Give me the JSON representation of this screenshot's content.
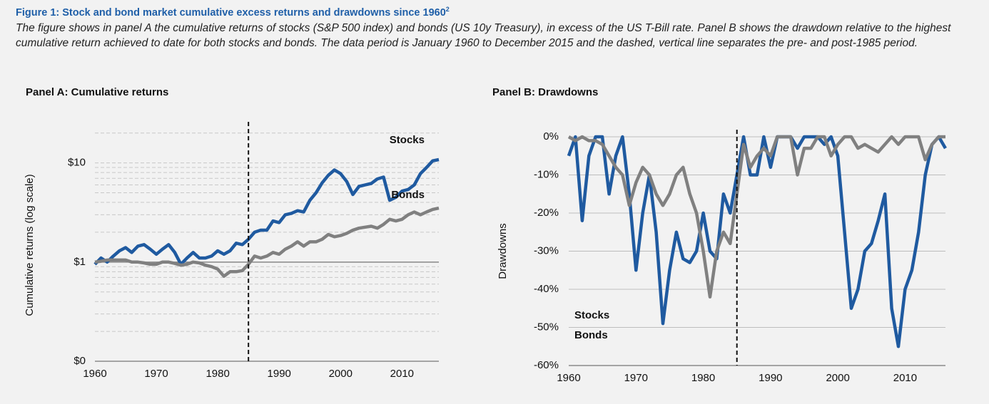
{
  "header": {
    "title": "Figure 1: Stock and bond market cumulative excess returns and drawdowns since 1960",
    "title_note": "2",
    "caption": "The figure shows in panel A the cumulative returns of stocks (S&P 500 index) and bonds (US 10y Treasury), in excess of the US T-Bill rate. Panel B shows the drawdown relative to the highest cumulative return achieved to date for both stocks and bonds. The data period is January 1960 to December 2015 and the dashed, vertical line separates the pre- and post-1985 period."
  },
  "chart_data": [
    {
      "type": "line",
      "title": "Panel A: Cumulative returns",
      "y_label": "Cumulative returns (log scale)",
      "yscale": "log",
      "legend": "inline",
      "grid": true,
      "x": [
        1960,
        1961,
        1962,
        1963,
        1964,
        1965,
        1966,
        1967,
        1968,
        1969,
        1970,
        1971,
        1972,
        1973,
        1974,
        1975,
        1976,
        1977,
        1978,
        1979,
        1980,
        1981,
        1982,
        1983,
        1984,
        1985,
        1986,
        1987,
        1988,
        1989,
        1990,
        1991,
        1992,
        1993,
        1994,
        1995,
        1996,
        1997,
        1998,
        1999,
        2000,
        2001,
        2002,
        2003,
        2004,
        2005,
        2006,
        2007,
        2008,
        2009,
        2010,
        2011,
        2012,
        2013,
        2014,
        2015,
        2016
      ],
      "series": [
        {
          "name": "Stocks",
          "color": "#1f5aa0",
          "values": [
            0.95,
            1.1,
            1.0,
            1.15,
            1.3,
            1.4,
            1.25,
            1.45,
            1.5,
            1.35,
            1.2,
            1.35,
            1.5,
            1.25,
            0.95,
            1.1,
            1.25,
            1.1,
            1.1,
            1.15,
            1.3,
            1.2,
            1.3,
            1.55,
            1.5,
            1.7,
            2.0,
            2.1,
            2.1,
            2.6,
            2.5,
            3.0,
            3.1,
            3.3,
            3.2,
            4.2,
            5.0,
            6.3,
            7.5,
            8.5,
            7.8,
            6.5,
            4.8,
            5.8,
            6.0,
            6.2,
            6.9,
            7.2,
            4.2,
            4.5,
            5.2,
            5.4,
            6.0,
            7.8,
            9.0,
            10.5,
            10.8
          ]
        },
        {
          "name": "Bonds",
          "color": "#808080",
          "values": [
            1.0,
            1.02,
            1.05,
            1.05,
            1.05,
            1.05,
            1.0,
            1.0,
            0.98,
            0.95,
            0.95,
            1.0,
            1.0,
            0.97,
            0.93,
            0.95,
            1.0,
            0.98,
            0.93,
            0.9,
            0.85,
            0.72,
            0.8,
            0.8,
            0.82,
            0.95,
            1.15,
            1.1,
            1.15,
            1.25,
            1.2,
            1.35,
            1.45,
            1.6,
            1.45,
            1.6,
            1.6,
            1.7,
            1.9,
            1.8,
            1.85,
            1.95,
            2.1,
            2.2,
            2.25,
            2.3,
            2.2,
            2.4,
            2.7,
            2.6,
            2.7,
            3.0,
            3.2,
            3.0,
            3.2,
            3.4,
            3.5
          ]
        }
      ],
      "xlim": [
        1960,
        2016
      ],
      "xticks": [
        1960,
        1970,
        1980,
        1990,
        2000,
        2010
      ],
      "ylim": [
        0.1,
        22
      ],
      "yticks": [
        {
          "value": 0.1,
          "label": "$0"
        },
        {
          "value": 1,
          "label": "$1"
        },
        {
          "value": 10,
          "label": "$10"
        }
      ],
      "yminor": [
        0.2,
        0.3,
        0.4,
        0.5,
        0.6,
        0.7,
        0.8,
        0.9,
        2,
        3,
        4,
        5,
        6,
        7,
        8,
        9,
        20
      ],
      "baseline": 1,
      "vline": 1985
    },
    {
      "type": "line",
      "title": "Panel B: Drawdowns",
      "y_label": "Drawdowns",
      "yscale": "linear",
      "legend": "lower left",
      "grid": true,
      "x": [
        1960,
        1961,
        1962,
        1963,
        1964,
        1965,
        1966,
        1967,
        1968,
        1969,
        1970,
        1971,
        1972,
        1973,
        1974,
        1975,
        1976,
        1977,
        1978,
        1979,
        1980,
        1981,
        1982,
        1983,
        1984,
        1985,
        1986,
        1987,
        1988,
        1989,
        1990,
        1991,
        1992,
        1993,
        1994,
        1995,
        1996,
        1997,
        1998,
        1999,
        2000,
        2001,
        2002,
        2003,
        2004,
        2005,
        2006,
        2007,
        2008,
        2009,
        2010,
        2011,
        2012,
        2013,
        2014,
        2015,
        2016
      ],
      "series": [
        {
          "name": "Stocks",
          "color": "#1f5aa0",
          "values": [
            -5,
            0,
            -22,
            -5,
            0,
            0,
            -15,
            -5,
            0,
            -15,
            -35,
            -20,
            -10,
            -25,
            -49,
            -35,
            -25,
            -32,
            -33,
            -30,
            -20,
            -30,
            -32,
            -15,
            -20,
            -10,
            0,
            -10,
            -10,
            0,
            -8,
            0,
            0,
            0,
            -3,
            0,
            0,
            0,
            -2,
            0,
            -5,
            -25,
            -45,
            -40,
            -30,
            -28,
            -22,
            -15,
            -45,
            -55,
            -40,
            -35,
            -25,
            -10,
            -2,
            0,
            -3
          ]
        },
        {
          "name": "Bonds",
          "color": "#808080",
          "values": [
            0,
            -1,
            0,
            -1,
            -1,
            -2,
            -5,
            -8,
            -10,
            -18,
            -12,
            -8,
            -10,
            -15,
            -18,
            -15,
            -10,
            -8,
            -15,
            -20,
            -30,
            -42,
            -30,
            -25,
            -28,
            -15,
            -2,
            -8,
            -5,
            -3,
            -5,
            0,
            0,
            0,
            -10,
            -3,
            -3,
            0,
            0,
            -5,
            -2,
            0,
            0,
            -3,
            -2,
            -3,
            -4,
            -2,
            0,
            -2,
            0,
            0,
            0,
            -6,
            -2,
            0,
            0
          ]
        }
      ],
      "xlim": [
        1960,
        2016
      ],
      "xticks": [
        1960,
        1970,
        1980,
        1990,
        2000,
        2010
      ],
      "ylim": [
        -60,
        0
      ],
      "yticks": [
        {
          "value": -60,
          "label": "-60%"
        },
        {
          "value": -50,
          "label": "-50%"
        },
        {
          "value": -40,
          "label": "-40%"
        },
        {
          "value": -30,
          "label": "-30%"
        },
        {
          "value": -20,
          "label": "-20%"
        },
        {
          "value": -10,
          "label": "-10%"
        },
        {
          "value": 0,
          "label": "0%"
        }
      ],
      "vline": 1985
    }
  ]
}
